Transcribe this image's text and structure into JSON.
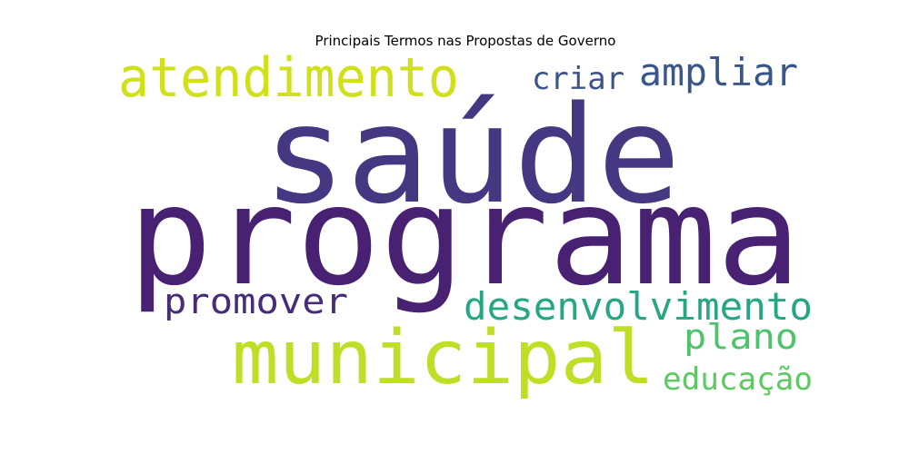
{
  "chart_data": {
    "type": "wordcloud",
    "title": "Principais Termos nas Propostas de Governo",
    "words": [
      {
        "text": "saúde",
        "color": "#453781"
      },
      {
        "text": "programa",
        "color": "#482173"
      },
      {
        "text": "municipal",
        "color": "#bddf26"
      },
      {
        "text": "atendimento",
        "color": "#d0e11c"
      },
      {
        "text": "ampliar",
        "color": "#39568c"
      },
      {
        "text": "criar",
        "color": "#3b528b"
      },
      {
        "text": "promover",
        "color": "#472c7a"
      },
      {
        "text": "desenvolvimento",
        "color": "#26a784"
      },
      {
        "text": "plano",
        "color": "#4ec36b"
      },
      {
        "text": "educação",
        "color": "#5ec962"
      }
    ]
  }
}
